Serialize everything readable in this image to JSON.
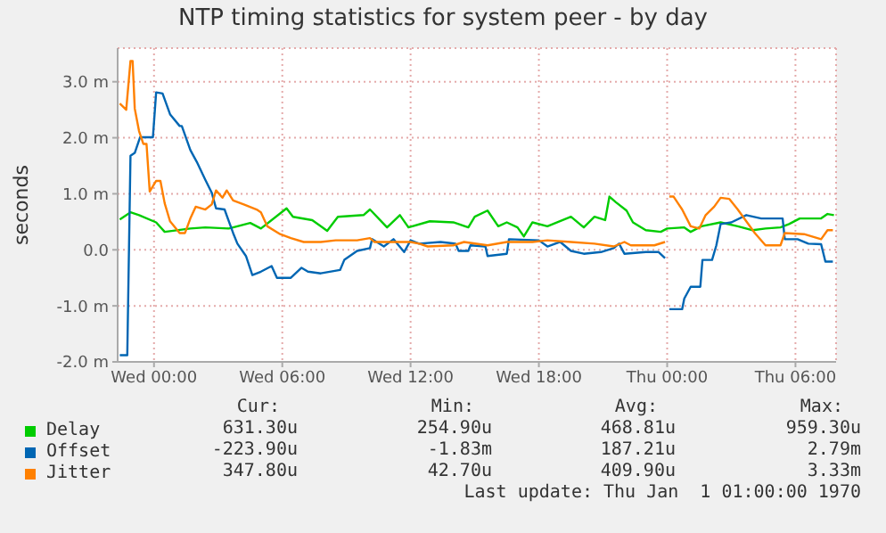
{
  "chart_data": {
    "type": "line",
    "title": "NTP timing statistics for system peer - by day",
    "ylabel": "seconds",
    "xlim": [
      "1969-12-30T22:18",
      "1970-01-01T07:54"
    ],
    "ylim": [
      -2,
      3.6
    ],
    "xticks": [
      {
        "value": "1969-12-31T00:00",
        "label": "Wed 00:00"
      },
      {
        "value": "1969-12-31T06:00",
        "label": "Wed 06:00"
      },
      {
        "value": "1969-12-31T12:00",
        "label": "Wed 12:00"
      },
      {
        "value": "1969-12-31T18:00",
        "label": "Wed 18:00"
      },
      {
        "value": "1970-01-01T00:00",
        "label": "Thu 00:00"
      },
      {
        "value": "1970-01-01T06:00",
        "label": "Thu 06:00"
      }
    ],
    "yticks": [
      {
        "value": -2,
        "label": "-2.0 m"
      },
      {
        "value": -1,
        "label": "-1.0 m"
      },
      {
        "value": 0,
        "label": "0.0"
      },
      {
        "value": 1,
        "label": "1.0 m"
      },
      {
        "value": 2,
        "label": "2.0 m"
      },
      {
        "value": 3,
        "label": "3.0 m"
      }
    ],
    "grid": true,
    "legend": "bottom",
    "series": [
      {
        "name": "Delay",
        "color": "#00cc00",
        "x": [
          "1969-12-30T22:24",
          "1969-12-30T22:54",
          "1969-12-30T23:18",
          "1969-12-31T00:06",
          "1969-12-31T00:30",
          "1969-12-31T01:42",
          "1969-12-31T02:24",
          "1969-12-31T03:30",
          "1969-12-31T04:30",
          "1969-12-31T05:00",
          "1969-12-31T06:12",
          "1969-12-31T06:30",
          "1969-12-31T07:24",
          "1969-12-31T08:06",
          "1969-12-31T08:36",
          "1969-12-31T09:48",
          "1969-12-31T10:06",
          "1969-12-31T10:54",
          "1969-12-31T11:30",
          "1969-12-31T11:54",
          "1969-12-31T12:54",
          "1969-12-31T14:00",
          "1969-12-31T14:42",
          "1969-12-31T15:00",
          "1969-12-31T15:36",
          "1969-12-31T16:06",
          "1969-12-31T16:30",
          "1969-12-31T17:00",
          "1969-12-31T17:18",
          "1969-12-31T17:42",
          "1969-12-31T18:24",
          "1969-12-31T19:30",
          "1969-12-31T20:06",
          "1969-12-31T20:36",
          "1969-12-31T21:06",
          "1969-12-31T21:18",
          "1969-12-31T21:36",
          "1969-12-31T22:06",
          "1969-12-31T22:24",
          "1969-12-31T23:00",
          "1969-12-31T23:42",
          "1970-01-01T00:00",
          "1970-01-01T00:48",
          "1970-01-01T01:06",
          "1970-01-01T01:36",
          "1970-01-01T02:30",
          "1970-01-01T03:18",
          "1970-01-01T04:00",
          "1970-01-01T04:36",
          "1970-01-01T05:18",
          "1970-01-01T05:42",
          "1970-01-01T06:12",
          "1970-01-01T07:12",
          "1970-01-01T07:30",
          "1970-01-01T07:48"
        ],
        "values": [
          0.54,
          0.67,
          0.62,
          0.49,
          0.32,
          0.38,
          0.4,
          0.38,
          0.48,
          0.38,
          0.74,
          0.59,
          0.53,
          0.34,
          0.59,
          0.62,
          0.72,
          0.4,
          0.62,
          0.4,
          0.51,
          0.49,
          0.4,
          0.59,
          0.7,
          0.42,
          0.49,
          0.4,
          0.24,
          0.49,
          0.42,
          0.59,
          0.4,
          0.59,
          0.53,
          0.95,
          0.85,
          0.7,
          0.49,
          0.35,
          0.32,
          0.38,
          0.4,
          0.32,
          0.42,
          0.49,
          0.42,
          0.35,
          0.38,
          0.4,
          0.46,
          0.56,
          0.56,
          0.64,
          0.62
        ]
      },
      {
        "name": "Offset",
        "color": "#0066b3",
        "x": [
          "1969-12-30T22:24",
          "1969-12-30T22:45",
          "1969-12-30T22:54",
          "1969-12-30T23:06",
          "1969-12-30T23:21",
          "1969-12-30T23:57",
          "1969-12-31T00:06",
          "1969-12-31T00:24",
          "1969-12-31T00:45",
          "1969-12-31T01:12",
          "1969-12-31T01:18",
          "1969-12-31T01:42",
          "1969-12-31T02:00",
          "1969-12-31T02:24",
          "1969-12-31T02:42",
          "1969-12-31T02:54",
          "1969-12-31T03:18",
          "1969-12-31T03:42",
          "1969-12-31T03:54",
          "1969-12-31T04:18",
          "1969-12-31T04:36",
          "1969-12-31T05:00",
          "1969-12-31T05:30",
          "1969-12-31T05:45",
          "1969-12-31T06:24",
          "1969-12-31T06:54",
          "1969-12-31T07:12",
          "1969-12-31T07:48",
          "1969-12-31T08:42",
          "1969-12-31T08:54",
          "1969-12-31T09:30",
          "1969-12-31T10:06",
          "1969-12-31T10:12",
          "1969-12-31T10:45",
          "1969-12-31T11:12",
          "1969-12-31T11:42",
          "1969-12-31T12:00",
          "1969-12-31T12:24",
          "1969-12-31T13:24",
          "1969-12-31T14:06",
          "1969-12-31T14:15",
          "1969-12-31T14:42",
          "1969-12-31T14:48",
          "1969-12-31T15:30",
          "1969-12-31T15:36",
          "1969-12-31T16:30",
          "1969-12-31T16:36",
          "1969-12-31T18:00",
          "1969-12-31T18:24",
          "1969-12-31T19:00",
          "1969-12-31T19:30",
          "1969-12-31T20:06",
          "1969-12-31T20:54",
          "1969-12-31T21:30",
          "1969-12-31T21:45",
          "1969-12-31T22:00",
          "1969-12-31T23:00",
          "1969-12-31T23:36",
          "1969-12-31T23:54",
          "1970-01-01T00:00",
          "1970-01-01T00:06",
          "1970-01-01T00:42",
          "1970-01-01T00:48",
          "1970-01-01T01:06",
          "1970-01-01T01:33",
          "1970-01-01T01:39",
          "1970-01-01T02:06",
          "1970-01-01T02:18",
          "1970-01-01T02:30",
          "1970-01-01T03:00",
          "1970-01-01T03:42",
          "1970-01-01T04:24",
          "1970-01-01T05:24",
          "1970-01-01T05:30",
          "1970-01-01T06:06",
          "1970-01-01T06:36",
          "1970-01-01T07:12",
          "1970-01-01T07:24",
          "1970-01-01T07:45"
        ],
        "values": [
          -1.88,
          -1.88,
          1.68,
          1.73,
          2.01,
          2.01,
          2.81,
          2.79,
          2.42,
          2.21,
          2.21,
          1.78,
          1.57,
          1.25,
          1.02,
          0.74,
          0.72,
          0.3,
          0.11,
          -0.11,
          -0.45,
          -0.39,
          -0.29,
          -0.5,
          -0.5,
          -0.32,
          -0.39,
          -0.42,
          -0.36,
          -0.18,
          -0.02,
          0.03,
          0.19,
          0.06,
          0.19,
          -0.04,
          0.17,
          0.11,
          0.14,
          0.11,
          -0.02,
          -0.02,
          0.08,
          0.06,
          -0.11,
          -0.07,
          0.19,
          0.17,
          0.06,
          0.14,
          -0.02,
          -0.07,
          -0.04,
          0.03,
          0.11,
          -0.07,
          -0.04,
          -0.04,
          -0.15,
          null,
          -1.06,
          -1.06,
          -0.87,
          -0.66,
          -0.66,
          -0.18,
          -0.18,
          0.08,
          0.46,
          0.49,
          0.62,
          0.56,
          0.56,
          0.19,
          0.19,
          0.11,
          0.1,
          -0.21,
          -0.21
        ]
      },
      {
        "name": "Jitter",
        "color": "#ff8000",
        "x": [
          "1969-12-30T22:24",
          "1969-12-30T22:42",
          "1969-12-30T22:54",
          "1969-12-30T23:00",
          "1969-12-30T23:06",
          "1969-12-30T23:18",
          "1969-12-30T23:30",
          "1969-12-30T23:39",
          "1969-12-30T23:48",
          "1969-12-31T00:06",
          "1969-12-31T00:18",
          "1969-12-31T00:30",
          "1969-12-31T00:45",
          "1969-12-31T01:12",
          "1969-12-31T01:27",
          "1969-12-31T01:42",
          "1969-12-31T01:57",
          "1969-12-31T02:24",
          "1969-12-31T02:42",
          "1969-12-31T02:54",
          "1969-12-31T03:12",
          "1969-12-31T03:24",
          "1969-12-31T03:42",
          "1969-12-31T04:12",
          "1969-12-31T04:48",
          "1969-12-31T05:00",
          "1969-12-31T05:18",
          "1969-12-31T05:54",
          "1969-12-31T06:24",
          "1969-12-31T07:00",
          "1969-12-31T07:48",
          "1969-12-31T08:30",
          "1969-12-31T09:30",
          "1969-12-31T10:06",
          "1969-12-31T10:18",
          "1969-12-31T11:12",
          "1969-12-31T12:00",
          "1969-12-31T12:24",
          "1969-12-31T12:48",
          "1969-12-31T14:00",
          "1969-12-31T14:30",
          "1969-12-31T15:36",
          "1969-12-31T16:30",
          "1969-12-31T17:42",
          "1969-12-31T18:24",
          "1969-12-31T19:30",
          "1969-12-31T20:36",
          "1969-12-31T21:30",
          "1969-12-31T22:00",
          "1969-12-31T22:18",
          "1969-12-31T23:24",
          "1969-12-31T23:54",
          "1970-01-01T00:00",
          "1970-01-01T00:06",
          "1970-01-01T00:18",
          "1970-01-01T00:42",
          "1970-01-01T01:06",
          "1970-01-01T01:30",
          "1970-01-01T01:48",
          "1970-01-01T02:12",
          "1970-01-01T02:30",
          "1970-01-01T02:54",
          "1970-01-01T03:18",
          "1970-01-01T03:42",
          "1970-01-01T04:06",
          "1970-01-01T04:36",
          "1970-01-01T05:18",
          "1970-01-01T05:30",
          "1970-01-01T06:24",
          "1970-01-01T07:12",
          "1970-01-01T07:30",
          "1970-01-01T07:45"
        ],
        "values": [
          2.61,
          2.5,
          3.37,
          3.37,
          2.52,
          2.12,
          1.89,
          1.89,
          1.04,
          1.23,
          1.23,
          0.83,
          0.51,
          0.3,
          0.3,
          0.56,
          0.77,
          0.72,
          0.81,
          1.06,
          0.93,
          1.06,
          0.88,
          0.81,
          0.72,
          0.67,
          0.42,
          0.28,
          0.21,
          0.14,
          0.14,
          0.17,
          0.17,
          0.21,
          0.14,
          0.14,
          0.14,
          0.11,
          0.06,
          0.08,
          0.14,
          0.08,
          0.14,
          0.14,
          0.17,
          0.14,
          0.11,
          0.06,
          0.14,
          0.08,
          0.08,
          0.14,
          null,
          0.95,
          0.95,
          0.72,
          0.42,
          0.38,
          0.62,
          0.77,
          0.93,
          0.91,
          0.72,
          0.51,
          0.3,
          0.08,
          0.08,
          0.3,
          0.28,
          0.19,
          0.35,
          0.35
        ]
      }
    ],
    "annotations": [
      "Cur:",
      "Min:",
      "Avg:",
      "Max:",
      "631.30u",
      "254.90u",
      "468.81u",
      "959.30u",
      "-223.90u",
      "-1.83m",
      "187.21u",
      "2.79m",
      "347.80u",
      "42.70u",
      "409.90u",
      "3.33m",
      "Last update: Thu Jan  1 01:00:00 1970"
    ]
  }
}
